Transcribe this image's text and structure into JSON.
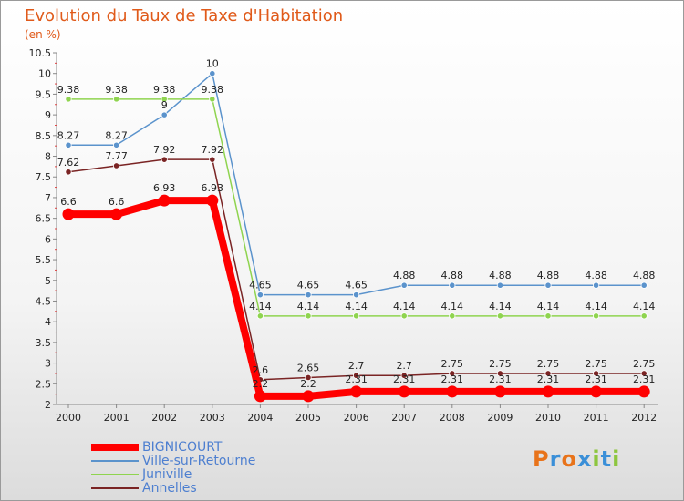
{
  "title": "Evolution du Taux de Taxe d'Habitation",
  "subtitle": "(en %)",
  "logo": {
    "letters": [
      "P",
      "r",
      "o",
      "x",
      "i",
      "t",
      "i"
    ],
    "colors": [
      "#e8731a",
      "#3a8fd8",
      "#e8731a",
      "#3a8fd8",
      "#8dc63f",
      "#3a8fd8",
      "#8dc63f"
    ]
  },
  "chart_data": {
    "type": "line",
    "x": [
      "2000",
      "2001",
      "2002",
      "2003",
      "2004",
      "2005",
      "2006",
      "2007",
      "2008",
      "2009",
      "2010",
      "2011",
      "2012"
    ],
    "ylim": [
      2,
      10.5
    ],
    "yticks": [
      "2",
      "2.5",
      "3",
      "3.5",
      "4",
      "4.5",
      "5",
      "5.5",
      "6",
      "6.5",
      "7",
      "7.5",
      "8",
      "8.5",
      "9",
      "9.5",
      "10",
      "10.5"
    ],
    "grid": false,
    "legend_position": "bottom-left",
    "series": [
      {
        "name": "BIGNICOURT",
        "color": "#ff0000",
        "emphasis": true,
        "values": [
          6.6,
          6.6,
          6.93,
          6.93,
          2.2,
          2.2,
          2.31,
          2.31,
          2.31,
          2.31,
          2.31,
          2.31,
          2.31
        ],
        "labels": [
          "6.6",
          "6.6",
          "6.93",
          "6.93",
          "2.2",
          "2.2",
          "2.31",
          "2.31",
          "2.31",
          "2.31",
          "2.31",
          "2.31",
          "2.31"
        ]
      },
      {
        "name": "Ville-sur-Retourne",
        "color": "#5b93cc",
        "values": [
          8.27,
          8.27,
          9,
          10,
          4.65,
          4.65,
          4.65,
          4.88,
          4.88,
          4.88,
          4.88,
          4.88,
          4.88
        ],
        "labels": [
          "8.27",
          "8.27",
          "9",
          "10",
          "4.65",
          "4.65",
          "4.65",
          "4.88",
          "4.88",
          "4.88",
          "4.88",
          "4.88",
          "4.88"
        ]
      },
      {
        "name": "Juniville",
        "color": "#8fd44f",
        "values": [
          9.38,
          9.38,
          9.38,
          9.38,
          4.14,
          4.14,
          4.14,
          4.14,
          4.14,
          4.14,
          4.14,
          4.14,
          4.14
        ],
        "labels": [
          "9.38",
          "9.38",
          "9.38",
          "9.38",
          "4.14",
          "4.14",
          "4.14",
          "4.14",
          "4.14",
          "4.14",
          "4.14",
          "4.14",
          "4.14"
        ]
      },
      {
        "name": "Annelles",
        "color": "#7a2424",
        "values": [
          7.62,
          7.77,
          7.92,
          7.92,
          2.6,
          2.65,
          2.7,
          2.7,
          2.75,
          2.75,
          2.75,
          2.75,
          2.75
        ],
        "labels": [
          "7.62",
          "7.77",
          "7.92",
          "7.92",
          "2.6",
          "2.65",
          "2.7",
          "2.7",
          "2.75",
          "2.75",
          "2.75",
          "2.75",
          "2.75"
        ]
      }
    ]
  }
}
